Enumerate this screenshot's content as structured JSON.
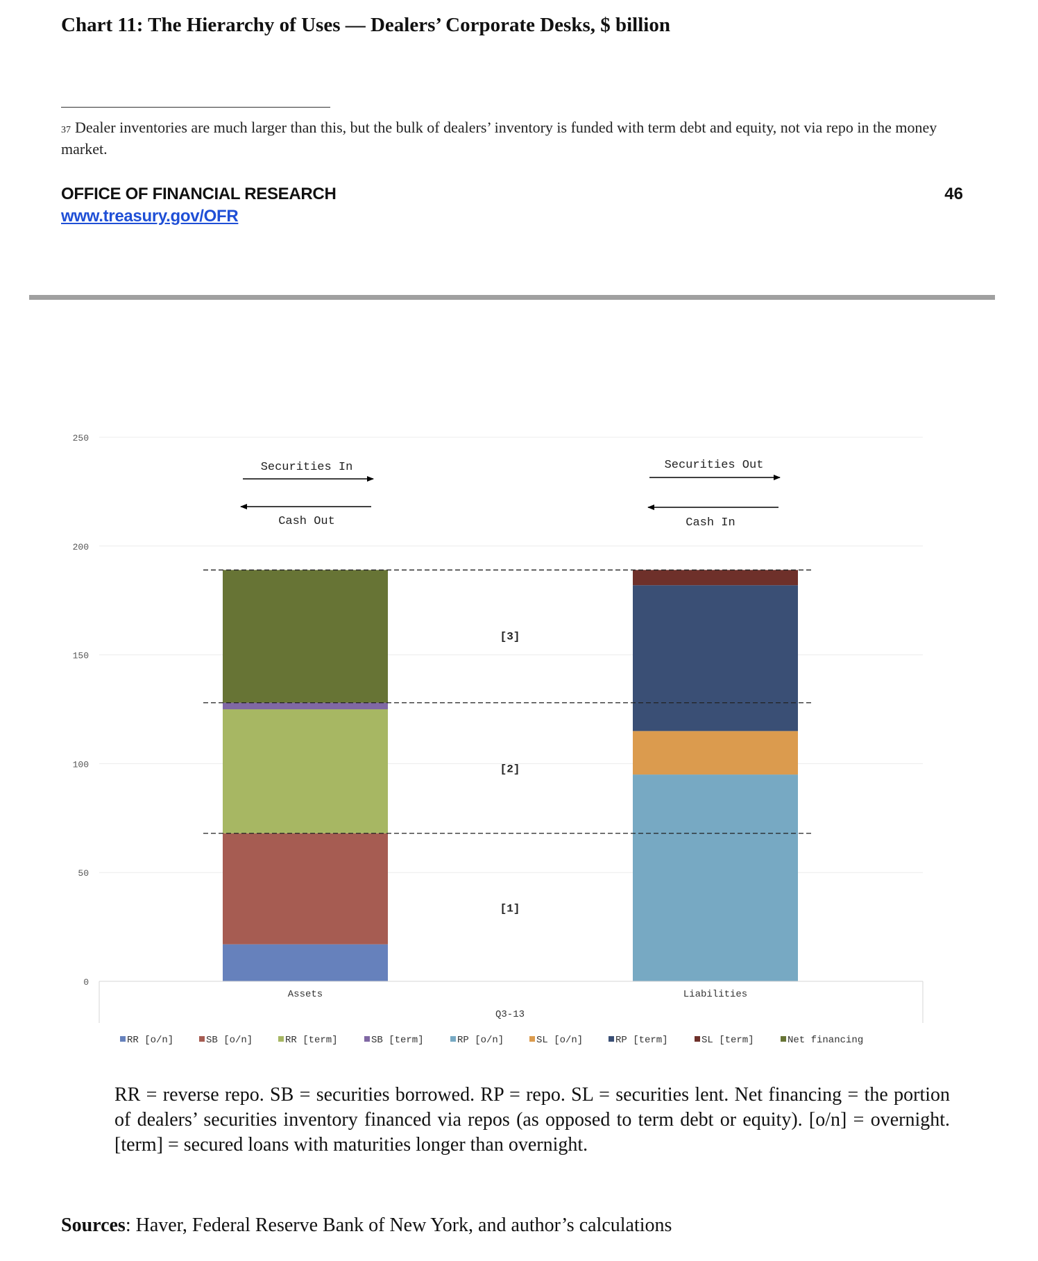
{
  "page": {
    "title": "Chart 11: The Hierarchy of Uses — Dealers’ Corporate Desks, $ billion",
    "footnote_number": "37",
    "footnote_text": "Dealer inventories are much larger than this, but the bulk of dealers’ inventory is funded with term debt and equity, not via repo in the money market.",
    "office": "OFFICE OF FINANCIAL RESEARCH",
    "url": "www.treasury.gov/OFR",
    "page_number": "46",
    "notes": "RR = reverse repo. SB = securities borrowed. RP = repo. SL = securities lent. Net financing = the portion of dealers’ securities inventory financed via repos (as opposed to term debt or equity). [o/n] = overnight. [term] = secured loans with maturities longer than overnight.",
    "sources_label": "Sources",
    "sources_text": ": Haver, Federal Reserve Bank of New York, and author’s calculations"
  },
  "chart_data": {
    "type": "bar",
    "stacked": true,
    "title": "",
    "xlabel": "Q3-13",
    "ylabel": "",
    "ylim": [
      0,
      250
    ],
    "yticks": [
      "0",
      "50",
      "100",
      "150",
      "200",
      "250"
    ],
    "categories": [
      "Assets",
      "Liabilities"
    ],
    "grid": true,
    "legend_position": "bottom",
    "series": [
      {
        "name": "RR [o/n]",
        "color": "#6681bc",
        "values": [
          17,
          0
        ]
      },
      {
        "name": "SB [o/n]",
        "color": "#a65c52",
        "values": [
          51,
          0
        ]
      },
      {
        "name": "RR [term]",
        "color": "#a7b763",
        "values": [
          57,
          0
        ]
      },
      {
        "name": "SB [term]",
        "color": "#8068a4",
        "values": [
          3,
          0
        ]
      },
      {
        "name": "RP [o/n]",
        "color": "#77a9c3",
        "values": [
          0,
          95
        ]
      },
      {
        "name": "SL [o/n]",
        "color": "#db9b4e",
        "values": [
          0,
          20
        ]
      },
      {
        "name": "RP [term]",
        "color": "#3a4f75",
        "values": [
          0,
          67
        ]
      },
      {
        "name": "SL [term]",
        "color": "#6e302a",
        "values": [
          0,
          7
        ]
      },
      {
        "name": "Net financing",
        "color": "#677435",
        "values": [
          61,
          0
        ]
      }
    ],
    "reference_lines": [
      68,
      128,
      189
    ],
    "zone_labels": [
      {
        "text": "[1]",
        "y": 34
      },
      {
        "text": "[2]",
        "y": 98
      },
      {
        "text": "[3]",
        "y": 159
      }
    ],
    "annotations": {
      "assets_top": "Securities In",
      "assets_bottom": "Cash Out",
      "liabilities_top": "Securities Out",
      "liabilities_bottom": "Cash In"
    }
  }
}
